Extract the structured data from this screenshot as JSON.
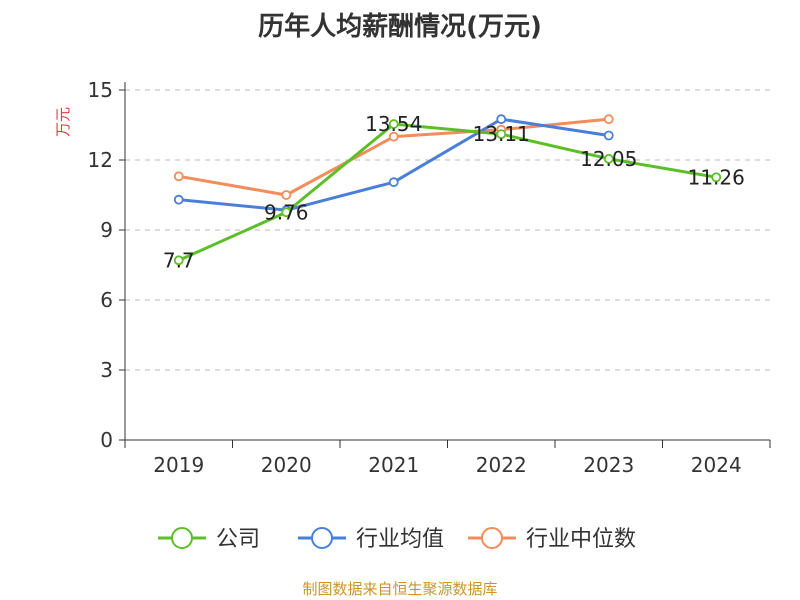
{
  "title": "历年人均薪酬情况(万元)",
  "source": "制图数据来自恒生聚源数据库",
  "colors": {
    "title": "#333333",
    "ylabel": "#e03c3c",
    "source": "#c8962a",
    "axis": "#333333",
    "grid": "#bbbbbb"
  },
  "chart_data": {
    "type": "line",
    "title": "历年人均薪酬情况(万元)",
    "ylabel": "万元",
    "xlabel": "",
    "categories": [
      "2019",
      "2020",
      "2021",
      "2022",
      "2023",
      "2024"
    ],
    "ylim": [
      0,
      15
    ],
    "yticks": [
      0,
      3,
      6,
      9,
      12,
      15
    ],
    "grid": "horizontal dashed",
    "legend_position": "bottom-center",
    "series": [
      {
        "name": "公司",
        "color": "#5cbf28",
        "values": [
          7.7,
          9.76,
          13.54,
          13.11,
          12.05,
          11.26
        ],
        "labels": [
          "7.7",
          "9.76",
          "13.54",
          "13.11",
          "12.05",
          "11.26"
        ]
      },
      {
        "name": "行业均值",
        "color": "#4a7fd8",
        "values": [
          10.3,
          9.85,
          11.05,
          13.75,
          13.05,
          null
        ]
      },
      {
        "name": "行业中位数",
        "color": "#f28c5a",
        "values": [
          11.3,
          10.5,
          13.0,
          13.3,
          13.75,
          null
        ]
      }
    ]
  }
}
